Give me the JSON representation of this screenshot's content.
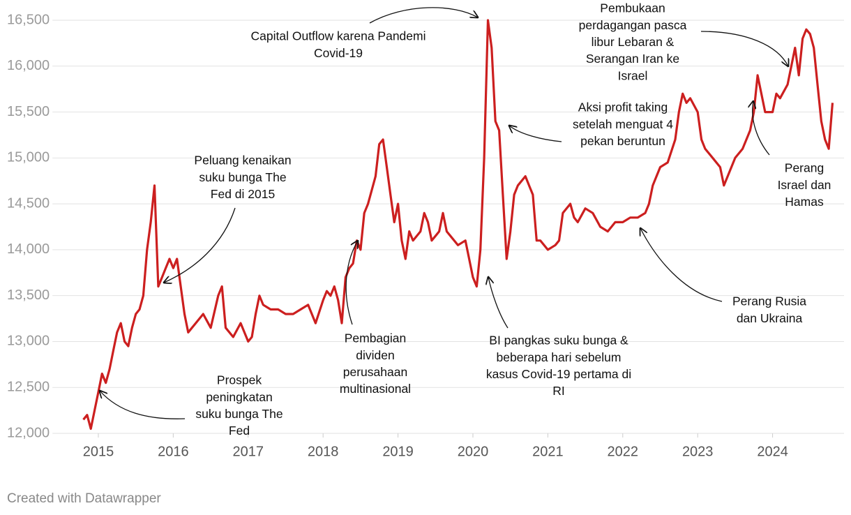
{
  "chart_data": {
    "type": "line",
    "x": [
      2014.8,
      2014.85,
      2014.9,
      2014.95,
      2015.0,
      2015.05,
      2015.1,
      2015.15,
      2015.2,
      2015.25,
      2015.3,
      2015.35,
      2015.4,
      2015.45,
      2015.5,
      2015.55,
      2015.6,
      2015.65,
      2015.7,
      2015.75,
      2015.8,
      2015.85,
      2015.9,
      2015.95,
      2016.0,
      2016.05,
      2016.1,
      2016.15,
      2016.2,
      2016.3,
      2016.4,
      2016.5,
      2016.6,
      2016.65,
      2016.7,
      2016.8,
      2016.9,
      2017.0,
      2017.05,
      2017.1,
      2017.15,
      2017.2,
      2017.3,
      2017.4,
      2017.5,
      2017.6,
      2017.7,
      2017.8,
      2017.9,
      2018.0,
      2018.05,
      2018.1,
      2018.15,
      2018.2,
      2018.25,
      2018.3,
      2018.35,
      2018.4,
      2018.45,
      2018.5,
      2018.55,
      2018.6,
      2018.7,
      2018.75,
      2018.8,
      2018.85,
      2018.9,
      2018.95,
      2019.0,
      2019.05,
      2019.1,
      2019.15,
      2019.2,
      2019.3,
      2019.35,
      2019.4,
      2019.45,
      2019.5,
      2019.55,
      2019.6,
      2019.65,
      2019.7,
      2019.8,
      2019.9,
      2020.0,
      2020.05,
      2020.1,
      2020.15,
      2020.2,
      2020.25,
      2020.3,
      2020.35,
      2020.4,
      2020.45,
      2020.5,
      2020.55,
      2020.6,
      2020.7,
      2020.75,
      2020.8,
      2020.85,
      2020.9,
      2021.0,
      2021.1,
      2021.15,
      2021.2,
      2021.3,
      2021.35,
      2021.4,
      2021.5,
      2021.6,
      2021.7,
      2021.8,
      2021.9,
      2022.0,
      2022.1,
      2022.2,
      2022.3,
      2022.35,
      2022.4,
      2022.5,
      2022.6,
      2022.7,
      2022.75,
      2022.8,
      2022.85,
      2022.9,
      2023.0,
      2023.05,
      2023.1,
      2023.2,
      2023.3,
      2023.35,
      2023.4,
      2023.5,
      2023.6,
      2023.7,
      2023.75,
      2023.8,
      2023.85,
      2023.9,
      2024.0,
      2024.05,
      2024.1,
      2024.2,
      2024.3,
      2024.35,
      2024.4,
      2024.45,
      2024.5,
      2024.55,
      2024.6,
      2024.65,
      2024.7,
      2024.75,
      2024.8
    ],
    "values": [
      12150,
      12200,
      12050,
      12250,
      12450,
      12650,
      12550,
      12700,
      12900,
      13100,
      13200,
      13000,
      12950,
      13150,
      13300,
      13350,
      13500,
      14000,
      14300,
      14700,
      13600,
      13700,
      13800,
      13900,
      13800,
      13900,
      13600,
      13300,
      13100,
      13200,
      13300,
      13150,
      13500,
      13600,
      13150,
      13050,
      13200,
      13000,
      13050,
      13300,
      13500,
      13400,
      13350,
      13350,
      13300,
      13300,
      13350,
      13400,
      13200,
      13450,
      13550,
      13500,
      13600,
      13450,
      13200,
      13700,
      13800,
      13850,
      14100,
      14000,
      14400,
      14500,
      14800,
      15150,
      15200,
      14900,
      14600,
      14300,
      14500,
      14100,
      13900,
      14200,
      14100,
      14200,
      14400,
      14300,
      14100,
      14150,
      14200,
      14400,
      14200,
      14150,
      14050,
      14100,
      13700,
      13600,
      14000,
      15000,
      16500,
      16200,
      15400,
      15300,
      14600,
      13900,
      14200,
      14600,
      14700,
      14800,
      14700,
      14600,
      14100,
      14100,
      14000,
      14050,
      14100,
      14400,
      14500,
      14350,
      14300,
      14450,
      14400,
      14250,
      14200,
      14300,
      14300,
      14350,
      14350,
      14400,
      14500,
      14700,
      14900,
      14950,
      15200,
      15500,
      15700,
      15600,
      15650,
      15500,
      15200,
      15100,
      15000,
      14900,
      14700,
      14800,
      15000,
      15100,
      15300,
      15500,
      15900,
      15700,
      15500,
      15500,
      15700,
      15650,
      15800,
      16200,
      15900,
      16300,
      16400,
      16350,
      16200,
      15800,
      15400,
      15200,
      15100,
      15600
    ],
    "color": "#cc1f1f",
    "xlim": [
      2014.6,
      2025.0
    ],
    "xticks": [
      2015,
      2016,
      2017,
      2018,
      2019,
      2020,
      2021,
      2022,
      2023,
      2024
    ],
    "ylim": [
      12000,
      16500
    ],
    "yticks": [
      {
        "value": 12000,
        "label": "12,000"
      },
      {
        "value": 12500,
        "label": "12,500"
      },
      {
        "value": 13000,
        "label": "13,000"
      },
      {
        "value": 13500,
        "label": "13,500"
      },
      {
        "value": 14000,
        "label": "14,000"
      },
      {
        "value": 14500,
        "label": "14,500"
      },
      {
        "value": 15000,
        "label": "15,000"
      },
      {
        "value": 15500,
        "label": "15,500"
      },
      {
        "value": 16000,
        "label": "16,000"
      },
      {
        "value": 16500,
        "label": "16,500"
      }
    ],
    "grid": true,
    "annotations": [
      {
        "lines": [
          "Capital Outflow karena Pandemi",
          "Covid-19"
        ]
      },
      {
        "lines": [
          "Pembukaan",
          "perdagangan pasca",
          "libur Lebaran &",
          "Serangan Iran ke",
          "Israel"
        ]
      },
      {
        "lines": [
          "Aksi profit taking",
          "setelah menguat 4",
          "pekan beruntun"
        ]
      },
      {
        "lines": [
          "Peluang kenaikan",
          "suku bunga The",
          "Fed di 2015"
        ]
      },
      {
        "lines": [
          "Perang",
          "Israel dan",
          "Hamas"
        ]
      },
      {
        "lines": [
          "Pembagian",
          "dividen",
          "perusahaan",
          "multinasional"
        ]
      },
      {
        "lines": [
          "BI pangkas suku bunga &",
          "beberapa hari sebelum",
          "kasus Covid-19 pertama di",
          "RI"
        ]
      },
      {
        "lines": [
          "Perang Rusia",
          "dan Ukraina"
        ]
      },
      {
        "lines": [
          "Prospek",
          "peningkatan",
          "suku bunga The",
          "Fed"
        ]
      }
    ]
  },
  "footer": "Created with Datawrapper"
}
